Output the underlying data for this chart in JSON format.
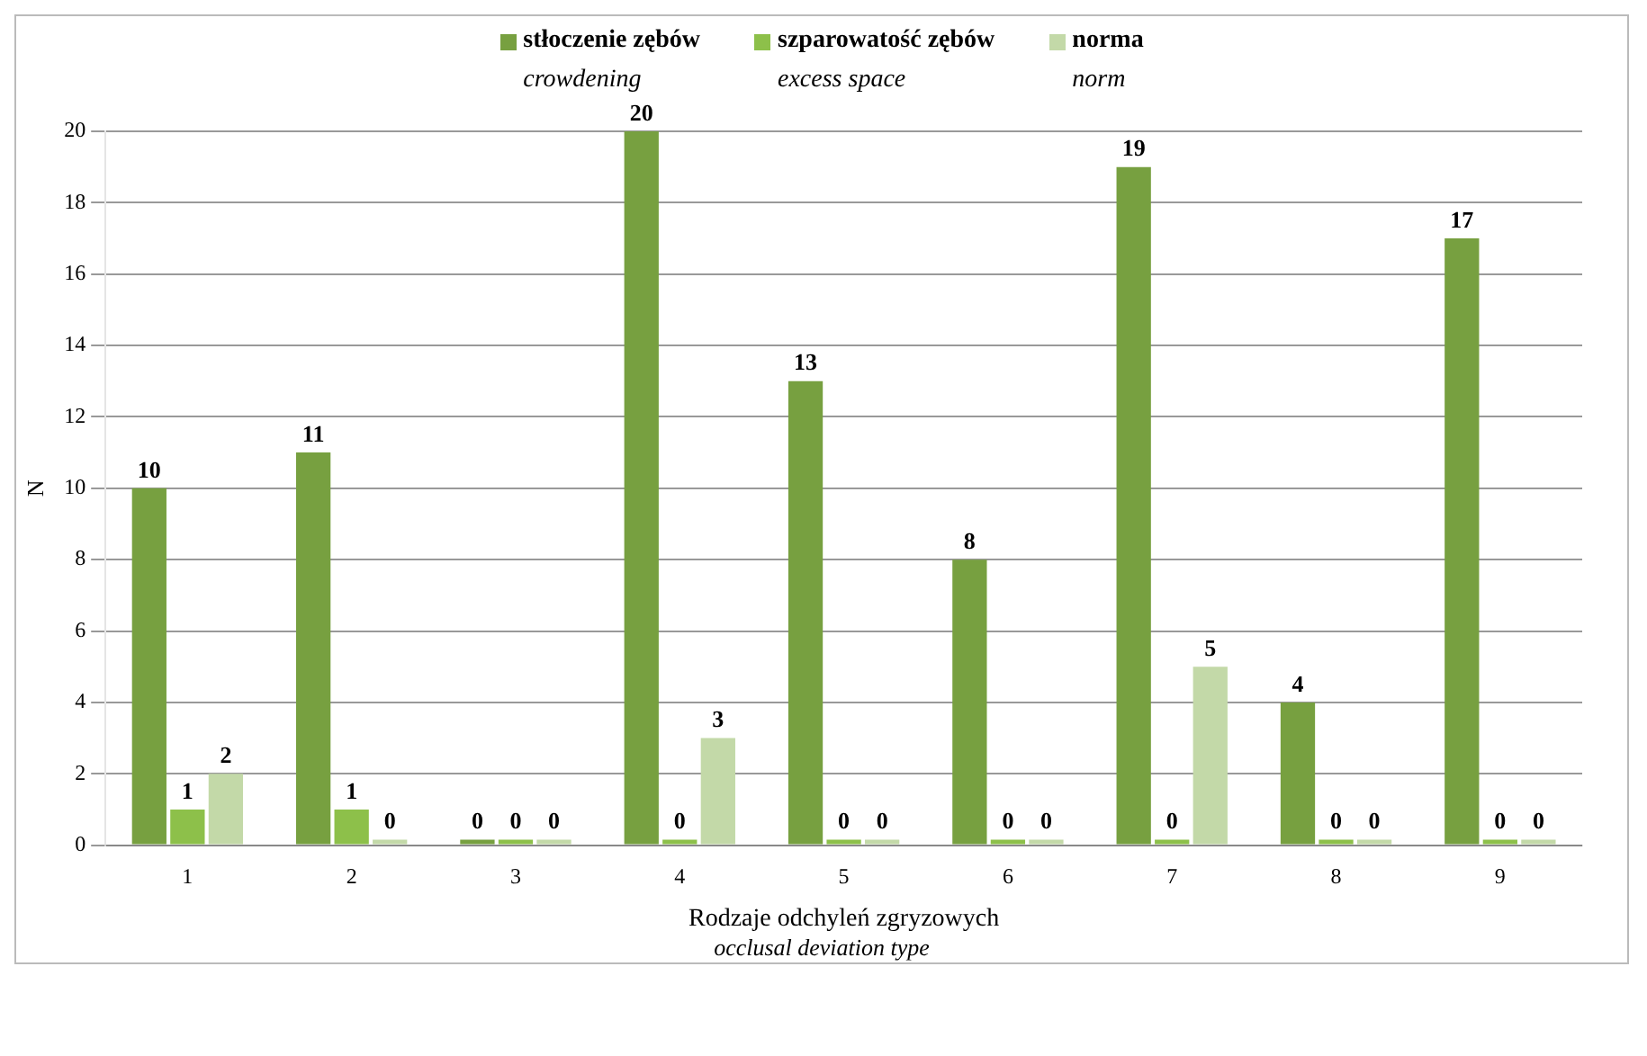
{
  "chart_data": {
    "type": "bar",
    "categories": [
      "1",
      "2",
      "3",
      "4",
      "5",
      "6",
      "7",
      "8",
      "9"
    ],
    "series": [
      {
        "name": "stłoczenie zębów",
        "color": "#77a040",
        "values": [
          10,
          11,
          0,
          20,
          13,
          8,
          19,
          4,
          17
        ]
      },
      {
        "name": "szparowatość zębów",
        "color": "#8dc04a",
        "values": [
          1,
          1,
          0,
          0,
          0,
          0,
          0,
          0,
          0
        ]
      },
      {
        "name": "norma",
        "color": "#c3d9a8",
        "values": [
          2,
          0,
          0,
          3,
          0,
          0,
          5,
          0,
          0
        ]
      }
    ],
    "xlabel": "Rodzaje odchyleń zgryzowych",
    "ylabel": "N",
    "annotations": [
      "crowdening",
      "excess space",
      "norm",
      "occlusal deviation type"
    ],
    "ylim": [
      0,
      20
    ],
    "yticks": [
      0,
      2,
      4,
      6,
      8,
      10,
      12,
      14,
      16,
      18,
      20
    ],
    "grid": "y",
    "legend": "top",
    "data_labels": true
  }
}
